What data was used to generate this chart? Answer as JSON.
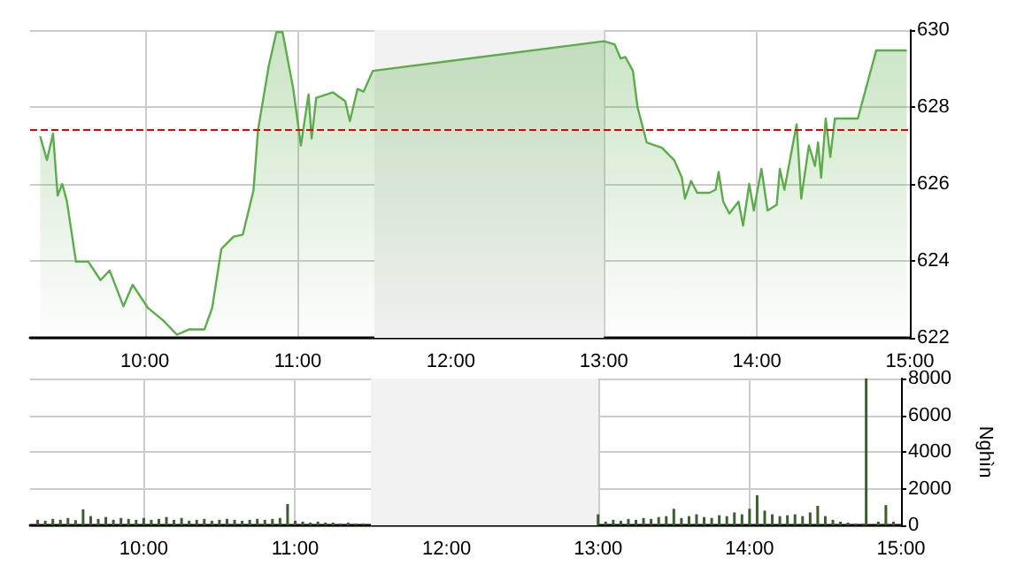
{
  "chart_data": [
    {
      "type": "area",
      "x": [
        9.316,
        9.36,
        9.4,
        9.43,
        9.46,
        9.49,
        9.55,
        9.63,
        9.71,
        9.77,
        9.86,
        9.92,
        10.02,
        10.12,
        10.21,
        10.29,
        10.39,
        10.44,
        10.5,
        10.58,
        10.64,
        10.71,
        10.74,
        10.81,
        10.86,
        10.9,
        10.97,
        11.02,
        11.07,
        11.09,
        11.12,
        11.23,
        11.31,
        11.34,
        11.39,
        11.43,
        11.49,
        13.0,
        13.07,
        13.11,
        13.14,
        13.19,
        13.22,
        13.28,
        13.38,
        13.46,
        13.51,
        13.53,
        13.57,
        13.61,
        13.69,
        13.73,
        13.75,
        13.78,
        13.82,
        13.88,
        13.91,
        13.95,
        13.98,
        14.03,
        14.07,
        14.13,
        14.15,
        14.18,
        14.22,
        14.26,
        14.29,
        14.34,
        14.38,
        14.4,
        14.42,
        14.45,
        14.48,
        14.51,
        14.66,
        14.78,
        14.98
      ],
      "series": [
        {
          "color": "#5cac4c",
          "values": [
            627.24,
            626.62,
            627.31,
            625.7,
            626.0,
            625.56,
            623.98,
            623.98,
            623.5,
            623.75,
            622.82,
            623.38,
            622.78,
            622.45,
            622.08,
            622.22,
            622.22,
            622.78,
            624.31,
            624.63,
            624.68,
            625.83,
            627.41,
            629.07,
            629.95,
            629.95,
            628.47,
            627.0,
            628.33,
            627.18,
            628.24,
            628.38,
            628.15,
            627.63,
            628.47,
            628.4,
            628.94,
            629.71,
            629.63,
            629.26,
            629.3,
            628.94,
            628.0,
            627.08,
            626.94,
            626.62,
            626.16,
            625.62,
            626.08,
            625.77,
            625.77,
            625.85,
            626.31,
            625.54,
            625.23,
            625.54,
            624.92,
            626.0,
            625.31,
            626.39,
            625.31,
            625.46,
            626.39,
            625.85,
            626.7,
            627.55,
            625.62,
            627.0,
            626.47,
            627.08,
            626.16,
            627.7,
            626.7,
            627.7,
            627.7,
            629.47,
            629.47
          ]
        }
      ],
      "xlim": [
        9.25,
        15
      ],
      "xticks": [
        {
          "value": 10,
          "label": "10:00"
        },
        {
          "value": 11,
          "label": "11:00"
        },
        {
          "value": 12,
          "label": "12:00"
        },
        {
          "value": 13,
          "label": "13:00"
        },
        {
          "value": 14,
          "label": "14:00"
        },
        {
          "value": 15,
          "label": "15:00"
        }
      ],
      "ylim": [
        622,
        630
      ],
      "yticks": [
        622,
        624,
        626,
        628,
        630
      ],
      "ref_lines": [
        {
          "axis": "y",
          "value": 627.4,
          "label": null,
          "color": "#dd0000",
          "line_style": "dashed"
        }
      ],
      "bands": [
        {
          "axis": "x",
          "from": 11.5,
          "to": 13,
          "label": null,
          "color": "#f2f2f2"
        }
      ],
      "grid": true,
      "marker": "none",
      "line_style": "solid"
    },
    {
      "type": "bar",
      "x": [
        9.3,
        9.35,
        9.4,
        9.45,
        9.5,
        9.55,
        9.6,
        9.65,
        9.7,
        9.75,
        9.8,
        9.85,
        9.9,
        9.95,
        10.0,
        10.05,
        10.1,
        10.15,
        10.2,
        10.25,
        10.3,
        10.35,
        10.4,
        10.45,
        10.5,
        10.55,
        10.6,
        10.65,
        10.7,
        10.75,
        10.8,
        10.85,
        10.9,
        10.95,
        11.0,
        11.05,
        11.1,
        11.15,
        11.2,
        11.25,
        11.3,
        11.35,
        11.4,
        11.45,
        13.0,
        13.05,
        13.1,
        13.15,
        13.2,
        13.25,
        13.3,
        13.35,
        13.4,
        13.45,
        13.5,
        13.55,
        13.6,
        13.65,
        13.7,
        13.75,
        13.8,
        13.85,
        13.9,
        13.95,
        14.0,
        14.05,
        14.1,
        14.15,
        14.2,
        14.25,
        14.3,
        14.35,
        14.4,
        14.45,
        14.5,
        14.55,
        14.6,
        14.65,
        14.7,
        14.75,
        14.77,
        14.85,
        14.9,
        14.95
      ],
      "series": [
        {
          "color": "#3a5e2e",
          "values": [
            300,
            250,
            350,
            300,
            400,
            280,
            870,
            500,
            350,
            450,
            300,
            400,
            350,
            300,
            400,
            300,
            350,
            450,
            300,
            400,
            250,
            300,
            350,
            250,
            300,
            350,
            300,
            250,
            300,
            350,
            300,
            350,
            400,
            1160,
            250,
            200,
            150,
            200,
            150,
            150,
            100,
            150,
            100,
            100,
            600,
            200,
            300,
            250,
            350,
            300,
            400,
            350,
            450,
            500,
            900,
            400,
            500,
            600,
            450,
            400,
            550,
            500,
            700,
            600,
            900,
            1640,
            800,
            600,
            500,
            550,
            600,
            500,
            700,
            1060,
            500,
            300,
            200,
            150,
            100,
            100,
            8000,
            200,
            1100,
            200
          ]
        }
      ],
      "xlim": [
        9.25,
        15
      ],
      "xticks": [
        {
          "value": 10,
          "label": "10:00"
        },
        {
          "value": 11,
          "label": "11:00"
        },
        {
          "value": 12,
          "label": "12:00"
        },
        {
          "value": 13,
          "label": "13:00"
        },
        {
          "value": 14,
          "label": "14:00"
        },
        {
          "value": 15,
          "label": "15:00"
        }
      ],
      "ylim": [
        0,
        8000
      ],
      "yticks": [
        0,
        2000,
        4000,
        6000,
        8000
      ],
      "ylabel": "Nghìn",
      "bands": [
        {
          "axis": "x",
          "from": 11.5,
          "to": 13,
          "label": null,
          "color": "#f2f2f2"
        }
      ],
      "grid": true
    }
  ]
}
